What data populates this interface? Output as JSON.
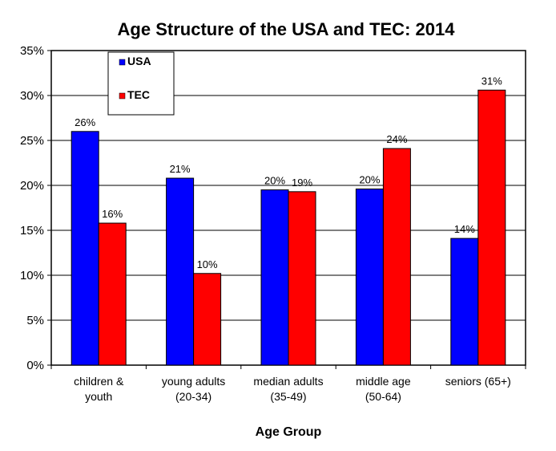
{
  "chart_data": {
    "type": "bar",
    "title": "Age Structure of the USA and TEC: 2014",
    "xlabel": "Age Group",
    "ylabel": "",
    "ylim": [
      0,
      35
    ],
    "yticks": [
      "0%",
      "5%",
      "10%",
      "15%",
      "20%",
      "25%",
      "30%",
      "35%"
    ],
    "grid": true,
    "legend_position": "top-left",
    "categories": [
      [
        "children &",
        "youth"
      ],
      [
        "young adults",
        "(20-34)"
      ],
      [
        "median adults",
        "(35-49)"
      ],
      [
        "middle age",
        "(50-64)"
      ],
      [
        "seniors (65+)"
      ]
    ],
    "series": [
      {
        "name": "USA",
        "color": "#0000FF",
        "values": [
          26,
          20.8,
          19.5,
          19.6,
          14.1
        ],
        "labels": [
          "26%",
          "21%",
          "20%",
          "20%",
          "14%"
        ]
      },
      {
        "name": "TEC",
        "color": "#FF0000",
        "values": [
          15.8,
          10.2,
          19.3,
          24.1,
          30.6
        ],
        "labels": [
          "16%",
          "10%",
          "19%",
          "24%",
          "31%"
        ]
      }
    ]
  }
}
